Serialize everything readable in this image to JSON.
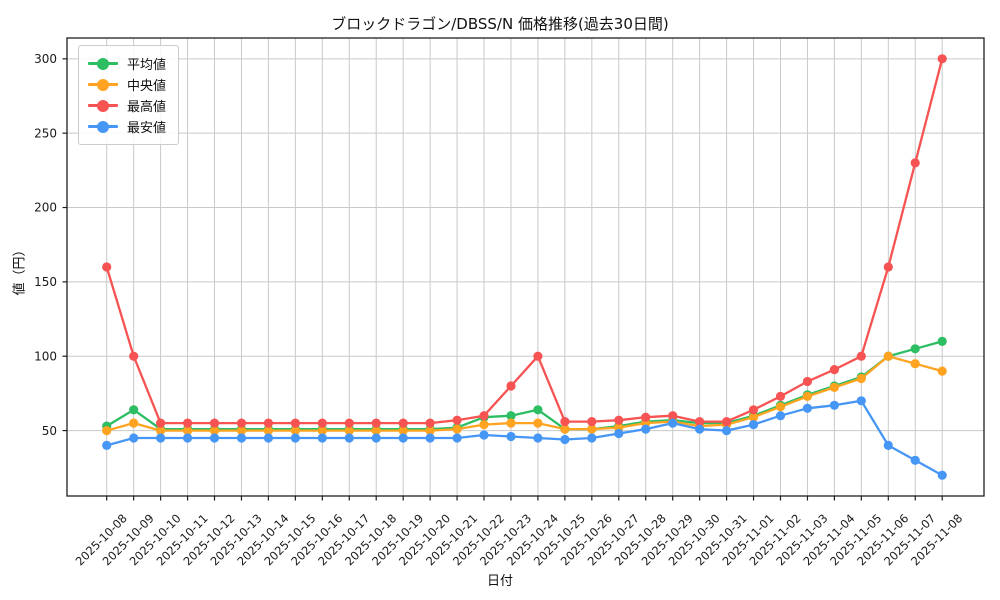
{
  "chart_data": {
    "type": "line",
    "title": "ブロックドラゴン/DBSS/N 価格推移(過去30日間)",
    "xlabel": "日付",
    "ylabel": "値（円）",
    "x": [
      "2025-10-08",
      "2025-10-09",
      "2025-10-10",
      "2025-10-11",
      "2025-10-12",
      "2025-10-13",
      "2025-10-14",
      "2025-10-15",
      "2025-10-16",
      "2025-10-17",
      "2025-10-18",
      "2025-10-19",
      "2025-10-20",
      "2025-10-21",
      "2025-10-22",
      "2025-10-23",
      "2025-10-24",
      "2025-10-25",
      "2025-10-26",
      "2025-10-27",
      "2025-10-28",
      "2025-10-29",
      "2025-10-30",
      "2025-10-31",
      "2025-11-01",
      "2025-11-02",
      "2025-11-03",
      "2025-11-04",
      "2025-11-05",
      "2025-11-06",
      "2025-11-07",
      "2025-11-08"
    ],
    "series": [
      {
        "key": "average",
        "name": "平均値",
        "color": "#2dbd63",
        "values": [
          53,
          64,
          51,
          51,
          51,
          51,
          51,
          51,
          51,
          51,
          51,
          51,
          51,
          52,
          59,
          60,
          64,
          51,
          51,
          53,
          56,
          57,
          55,
          55,
          60,
          67,
          74,
          80,
          86,
          100,
          105,
          110
        ]
      },
      {
        "key": "median",
        "name": "中央値",
        "color": "#ffa320",
        "values": [
          50,
          55,
          50,
          50,
          50,
          50,
          50,
          50,
          50,
          50,
          50,
          50,
          50,
          51,
          54,
          55,
          55,
          51,
          51,
          52,
          55,
          56,
          53,
          54,
          59,
          66,
          73,
          79,
          85,
          100,
          95,
          90
        ]
      },
      {
        "key": "max",
        "name": "最高値",
        "color": "#f65352",
        "values": [
          160,
          100,
          55,
          55,
          55,
          55,
          55,
          55,
          55,
          55,
          55,
          55,
          55,
          57,
          60,
          80,
          100,
          56,
          56,
          57,
          59,
          60,
          56,
          56,
          64,
          73,
          83,
          91,
          100,
          160,
          230,
          300
        ]
      },
      {
        "key": "min",
        "name": "最安値",
        "color": "#4696f5",
        "values": [
          40,
          45,
          45,
          45,
          45,
          45,
          45,
          45,
          45,
          45,
          45,
          45,
          45,
          45,
          47,
          46,
          45,
          44,
          45,
          48,
          51,
          55,
          51,
          50,
          54,
          60,
          65,
          67,
          70,
          40,
          30,
          20
        ]
      }
    ],
    "yticks": [
      50,
      100,
      150,
      200,
      250,
      300
    ],
    "ylim": [
      6,
      314
    ],
    "grid": true,
    "legend_position": "upper left",
    "colors": {
      "grid": "#c9c9c9",
      "spine": "#1f1f1f",
      "tick_label": "#1a1a1a",
      "background": "#ffffff"
    }
  }
}
